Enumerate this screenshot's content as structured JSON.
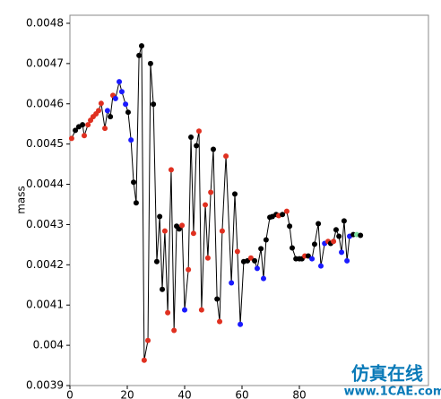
{
  "chart_data": {
    "type": "line",
    "y_label": "mass",
    "xlim": [
      0,
      125
    ],
    "ylim": [
      0.0039,
      0.00482
    ],
    "xticks": [
      0,
      20,
      40,
      60,
      80
    ],
    "yticks": [
      0.0039,
      0.004,
      0.0041,
      0.0042,
      0.0043,
      0.0044,
      0.0045,
      0.0046,
      0.0047,
      0.0048
    ],
    "line_color": "#000000",
    "series": [
      {
        "x": [
          0.6,
          1.9,
          3.1,
          4.4,
          5,
          6.3,
          7.2,
          8.1,
          9.1,
          10,
          10.9,
          12.2,
          13.1,
          14.1,
          15,
          15.9,
          17.2,
          18.1,
          19.4,
          20.3,
          21.3,
          22.2,
          23.1,
          24.1,
          25,
          25.9,
          27.2,
          28.1,
          29.1,
          30.3,
          31.3,
          32.2,
          33.1,
          34.1,
          35.3,
          36.3,
          37.2,
          38.1,
          39.1,
          40,
          41.3,
          42.2,
          43.1,
          44.1,
          45,
          45.9,
          47.2,
          48.1,
          49.1,
          50,
          51.3,
          52.2,
          53.1,
          54.4,
          56.3,
          57.5,
          58.4,
          59.4,
          60.6,
          61.9,
          63.1,
          64.4,
          65.3,
          66.6,
          67.5,
          68.4,
          69.7,
          70.6,
          71.9,
          72.8,
          74.1,
          75.6,
          76.6,
          77.5,
          78.8,
          80,
          80.9,
          81.9,
          83.1,
          84.4,
          85.3,
          86.6,
          87.5,
          88.8,
          90,
          90.9,
          91.9,
          92.8,
          93.8,
          94.7,
          95.6,
          96.6,
          97.5,
          98.8,
          100,
          101.3
        ],
        "values": [
          0.004514,
          0.004534,
          0.004543,
          0.004548,
          0.004521,
          0.004548,
          0.004559,
          0.004568,
          0.004575,
          0.004583,
          0.004601,
          0.004539,
          0.004583,
          0.004568,
          0.004621,
          0.004613,
          0.004655,
          0.00463,
          0.004599,
          0.004579,
          0.00451,
          0.004405,
          0.004354,
          0.00472,
          0.004744,
          0.003963,
          0.004012,
          0.0047,
          0.004599,
          0.004208,
          0.00432,
          0.004139,
          0.004284,
          0.004081,
          0.004436,
          0.004037,
          0.004296,
          0.004289,
          0.004298,
          0.004088,
          0.004188,
          0.004517,
          0.004278,
          0.004496,
          0.004532,
          0.004088,
          0.004349,
          0.004217,
          0.00438,
          0.004487,
          0.004115,
          0.004059,
          0.004284,
          0.00447,
          0.004155,
          0.004376,
          0.004233,
          0.004052,
          0.004208,
          0.00421,
          0.004217,
          0.00421,
          0.004191,
          0.00424,
          0.004166,
          0.004262,
          0.004318,
          0.00432,
          0.004325,
          0.004322,
          0.004325,
          0.004333,
          0.004296,
          0.004242,
          0.004215,
          0.004215,
          0.004215,
          0.004222,
          0.004222,
          0.004215,
          0.004251,
          0.004302,
          0.004197,
          0.004253,
          0.004258,
          0.004253,
          0.004258,
          0.004287,
          0.004271,
          0.004231,
          0.004309,
          0.00421,
          0.004271,
          0.004275,
          0.004275,
          0.004273
        ],
        "point_colors": [
          "#e03020",
          "#000000",
          "#000000",
          "#000000",
          "#e03020",
          "#e03020",
          "#e03020",
          "#e03020",
          "#e03020",
          "#e03020",
          "#e03020",
          "#e03020",
          "#1a1aff",
          "#000000",
          "#e03020",
          "#1a1aff",
          "#1a1aff",
          "#1a1aff",
          "#1a1aff",
          "#000000",
          "#1a1aff",
          "#000000",
          "#000000",
          "#000000",
          "#000000",
          "#e03020",
          "#e03020",
          "#000000",
          "#000000",
          "#000000",
          "#000000",
          "#000000",
          "#e03020",
          "#e03020",
          "#e03020",
          "#e03020",
          "#000000",
          "#000000",
          "#e03020",
          "#1a1aff",
          "#e03020",
          "#000000",
          "#e03020",
          "#000000",
          "#e03020",
          "#e03020",
          "#e03020",
          "#e03020",
          "#e03020",
          "#000000",
          "#000000",
          "#e03020",
          "#e03020",
          "#e03020",
          "#1a1aff",
          "#000000",
          "#e03020",
          "#1a1aff",
          "#000000",
          "#000000",
          "#e03020",
          "#000000",
          "#1a1aff",
          "#000000",
          "#1a1aff",
          "#000000",
          "#000000",
          "#000000",
          "#000000",
          "#e03020",
          "#000000",
          "#e03020",
          "#000000",
          "#000000",
          "#000000",
          "#000000",
          "#000000",
          "#e03020",
          "#000000",
          "#1a1aff",
          "#000000",
          "#000000",
          "#1a1aff",
          "#1a1aff",
          "#e03020",
          "#000000",
          "#e03020",
          "#000000",
          "#000000",
          "#1a1aff",
          "#000000",
          "#1a1aff",
          "#1a1aff",
          "#000000",
          "#7fe0a0",
          "#000000"
        ]
      }
    ]
  },
  "watermark": {
    "brand": "仿真在线",
    "url": "www.1CAE.com"
  }
}
